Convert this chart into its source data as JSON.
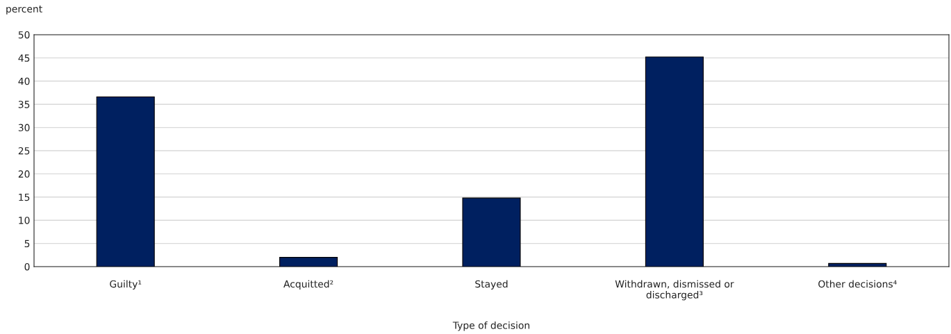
{
  "chart_data": {
    "type": "bar",
    "ylabel": "percent",
    "xlabel": "Type of decision",
    "categories": [
      "Guilty¹",
      "Acquitted²",
      "Stayed",
      "Withdrawn, dismissed or\ndischarged³",
      "Other decisions⁴"
    ],
    "values": [
      36.6,
      2.0,
      14.8,
      45.2,
      0.7
    ],
    "color": "#002060",
    "ylim": [
      0,
      50
    ],
    "yticks": [
      0,
      5,
      10,
      15,
      20,
      25,
      30,
      35,
      40,
      45,
      50
    ],
    "grid": "y"
  }
}
